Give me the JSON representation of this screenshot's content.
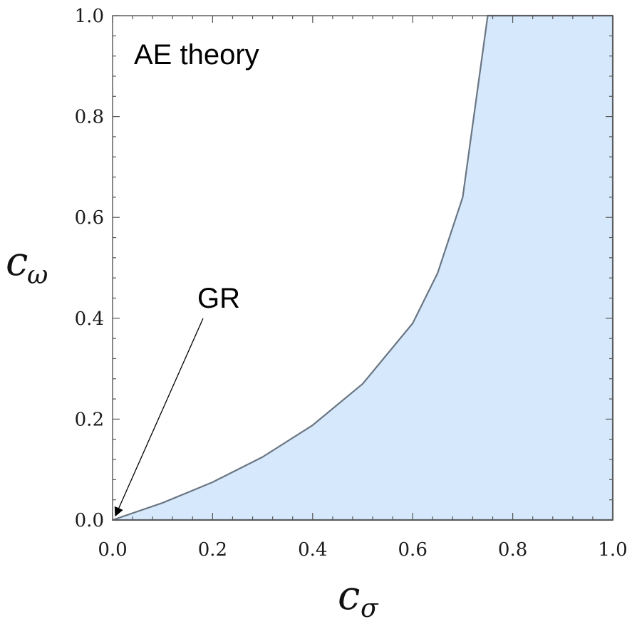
{
  "chart_data": {
    "type": "area",
    "title": "",
    "xlabel": {
      "symbol": "c",
      "subscript": "σ"
    },
    "ylabel": {
      "symbol": "c",
      "subscript": "ω"
    },
    "xlim": [
      0.0,
      1.0
    ],
    "ylim": [
      0.0,
      1.0
    ],
    "x_ticks": [
      "0.0",
      "0.2",
      "0.4",
      "0.6",
      "0.8",
      "1.0"
    ],
    "y_ticks": [
      "0.0",
      "0.2",
      "0.4",
      "0.6",
      "0.8",
      "1.0"
    ],
    "grid": false,
    "region": {
      "description": "allowed parameter region bounded below by c_omega = 0, on the right by c_sigma = 1, on top by c_omega = 1, and on the left by a curve",
      "fill_color": "#d6e8fb",
      "stroke_color": "#6b7682",
      "boundary_curve": {
        "x": [
          0.0,
          0.1,
          0.2,
          0.3,
          0.4,
          0.5,
          0.6,
          0.65,
          0.7,
          0.75
        ],
        "y": [
          0.0,
          0.034,
          0.075,
          0.125,
          0.188,
          0.27,
          0.39,
          0.49,
          0.64,
          1.0
        ]
      },
      "upper_edge": {
        "x": [
          0.75,
          1.0
        ],
        "y": [
          1.0,
          1.0
        ]
      },
      "right_edge": {
        "x": [
          1.0,
          1.0
        ],
        "y": [
          0.0,
          1.0
        ]
      },
      "lower_edge": {
        "x": [
          0.0,
          1.0
        ],
        "y": [
          0.0,
          0.0
        ]
      }
    },
    "annotations": [
      {
        "text": "AE theory"
      },
      {
        "text": "GR",
        "arrow_to": [
          0.0,
          0.0
        ]
      }
    ]
  }
}
